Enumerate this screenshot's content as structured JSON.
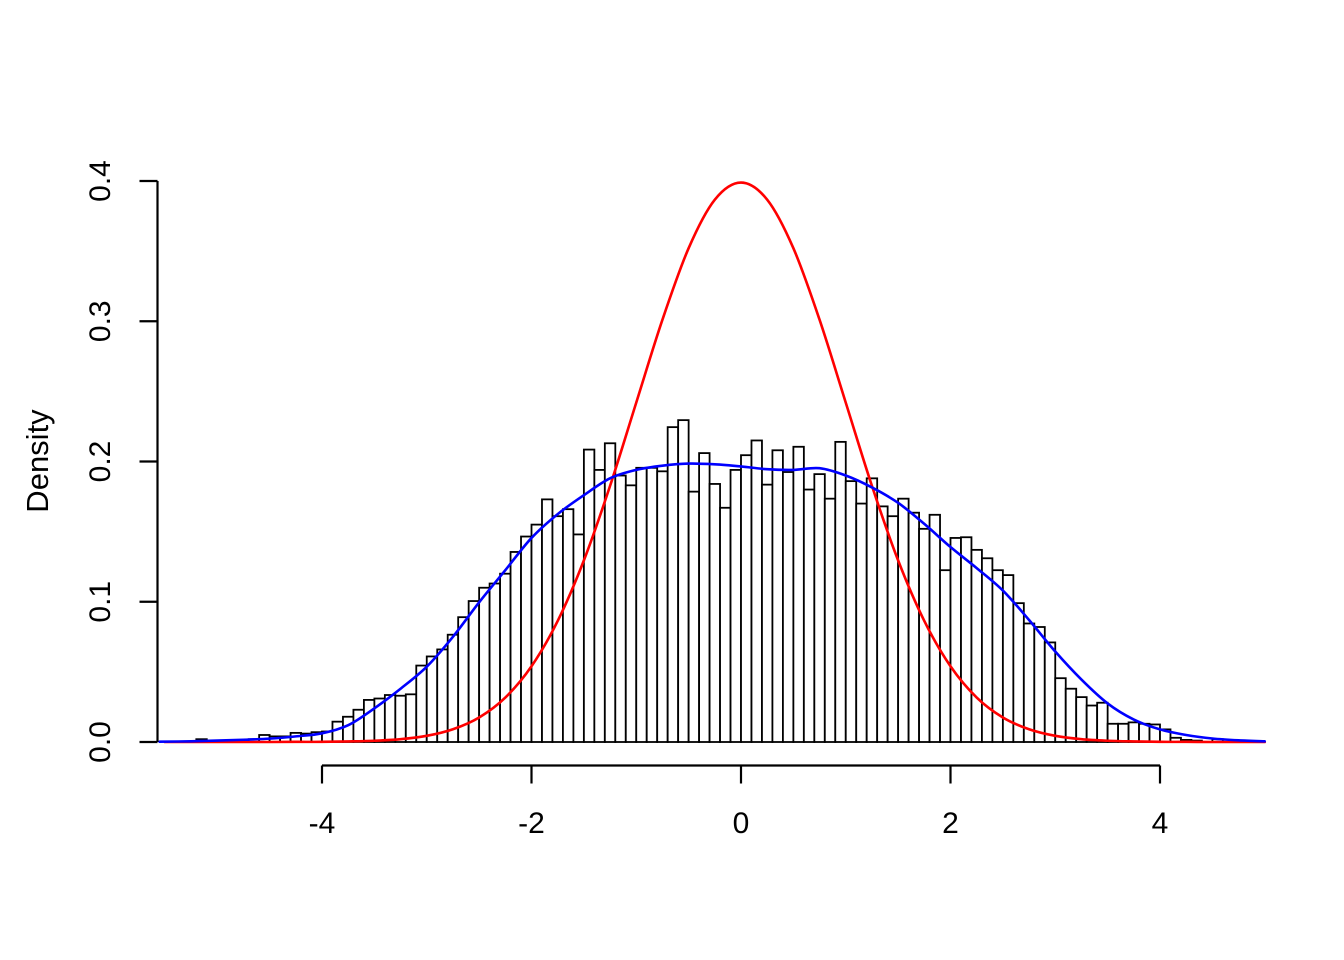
{
  "figure": {
    "background": "#FFFFFF"
  },
  "chart_data": {
    "type": "bar",
    "subtype": "histogram-with-density-curves",
    "title": "",
    "xlabel": "",
    "ylabel": "Density",
    "x_ticks": [
      -4,
      -2,
      0,
      2,
      4
    ],
    "x_tick_labels": [
      "-4",
      "-2",
      "0",
      "2",
      "4"
    ],
    "y_ticks": [
      0.0,
      0.1,
      0.2,
      0.3,
      0.4
    ],
    "y_tick_labels": [
      "0.0",
      "0.1",
      "0.2",
      "0.3",
      "0.4"
    ],
    "xlim": [
      -5.6,
      5.05
    ],
    "ylim": [
      0,
      0.4
    ],
    "grid": "off",
    "legend": "none",
    "axis_color": "#000000",
    "histogram": {
      "bin_start": -5.2,
      "bin_width": 0.1,
      "bar_fill": "#FFFFFF",
      "bar_stroke": "#000000",
      "densities": [
        0.002,
        0,
        0,
        0,
        0,
        0.002,
        0.005,
        0.004,
        0.004,
        0.0065,
        0.006,
        0.007,
        0.0075,
        0.0145,
        0.018,
        0.023,
        0.03,
        0.031,
        0.0335,
        0.033,
        0.034,
        0.0545,
        0.061,
        0.066,
        0.0765,
        0.089,
        0.1005,
        0.11,
        0.113,
        0.12,
        0.1355,
        0.1465,
        0.155,
        0.173,
        0.161,
        0.166,
        0.148,
        0.2085,
        0.194,
        0.213,
        0.19,
        0.183,
        0.1955,
        0.1955,
        0.193,
        0.2245,
        0.2295,
        0.1785,
        0.206,
        0.184,
        0.167,
        0.194,
        0.2045,
        0.215,
        0.1835,
        0.208,
        0.1925,
        0.2105,
        0.18,
        0.191,
        0.1735,
        0.214,
        0.186,
        0.17,
        0.188,
        0.168,
        0.161,
        0.1735,
        0.1635,
        0.152,
        0.162,
        0.1225,
        0.1455,
        0.146,
        0.137,
        0.131,
        0.1225,
        0.119,
        0.099,
        0.0845,
        0.082,
        0.071,
        0.0455,
        0.038,
        0.032,
        0.026,
        0.028,
        0.013,
        0.013,
        0.014,
        0.013,
        0.0125,
        0.009,
        0.003,
        0.0015,
        0.001,
        0,
        0.002
      ]
    },
    "curves": [
      {
        "name": "normal-density",
        "color": "#FF0000",
        "points": [
          [
            -5.5,
            0
          ],
          [
            -5.25,
            0
          ],
          [
            -5.0,
            0
          ],
          [
            -4.75,
            0
          ],
          [
            -4.5,
            0
          ],
          [
            -4.25,
            0.0001
          ],
          [
            -4.0,
            0.0001
          ],
          [
            -3.75,
            0.0004
          ],
          [
            -3.5,
            0.0009
          ],
          [
            -3.25,
            0.002
          ],
          [
            -3.0,
            0.0044
          ],
          [
            -2.75,
            0.0091
          ],
          [
            -2.5,
            0.0175
          ],
          [
            -2.25,
            0.0317
          ],
          [
            -2.0,
            0.054
          ],
          [
            -1.75,
            0.0863
          ],
          [
            -1.5,
            0.1295
          ],
          [
            -1.25,
            0.1826
          ],
          [
            -1.0,
            0.242
          ],
          [
            -0.75,
            0.3011
          ],
          [
            -0.5,
            0.3521
          ],
          [
            -0.25,
            0.3867
          ],
          [
            0.0,
            0.3989
          ],
          [
            0.25,
            0.3867
          ],
          [
            0.5,
            0.3521
          ],
          [
            0.75,
            0.3011
          ],
          [
            1.0,
            0.242
          ],
          [
            1.25,
            0.1826
          ],
          [
            1.5,
            0.1295
          ],
          [
            1.75,
            0.0863
          ],
          [
            2.0,
            0.054
          ],
          [
            2.25,
            0.0317
          ],
          [
            2.5,
            0.0175
          ],
          [
            2.75,
            0.0091
          ],
          [
            3.0,
            0.0044
          ],
          [
            3.25,
            0.002
          ],
          [
            3.5,
            0.0009
          ],
          [
            3.75,
            0.0004
          ],
          [
            4.0,
            0.0001
          ],
          [
            4.25,
            0.0001
          ],
          [
            4.5,
            0
          ],
          [
            4.75,
            0
          ],
          [
            5.0,
            0
          ]
        ]
      },
      {
        "name": "kernel-density-estimate",
        "color": "#0000FF",
        "points": [
          [
            -5.55,
            0.0002
          ],
          [
            -5.25,
            0.0005
          ],
          [
            -5.0,
            0.001
          ],
          [
            -4.75,
            0.0016
          ],
          [
            -4.5,
            0.0024
          ],
          [
            -4.25,
            0.004
          ],
          [
            -4.0,
            0.0062
          ],
          [
            -3.75,
            0.012
          ],
          [
            -3.5,
            0.024
          ],
          [
            -3.25,
            0.038
          ],
          [
            -3.0,
            0.0537
          ],
          [
            -2.75,
            0.075
          ],
          [
            -2.5,
            0.0996
          ],
          [
            -2.25,
            0.1225
          ],
          [
            -2.0,
            0.1455
          ],
          [
            -1.75,
            0.1625
          ],
          [
            -1.5,
            0.176
          ],
          [
            -1.25,
            0.188
          ],
          [
            -1.0,
            0.194
          ],
          [
            -0.75,
            0.197
          ],
          [
            -0.5,
            0.1985
          ],
          [
            -0.25,
            0.198
          ],
          [
            0.0,
            0.1965
          ],
          [
            0.25,
            0.1945
          ],
          [
            0.5,
            0.194
          ],
          [
            0.75,
            0.1952
          ],
          [
            1.0,
            0.19
          ],
          [
            1.25,
            0.1815
          ],
          [
            1.5,
            0.1705
          ],
          [
            1.75,
            0.1555
          ],
          [
            2.0,
            0.139
          ],
          [
            2.25,
            0.124
          ],
          [
            2.5,
            0.108
          ],
          [
            2.75,
            0.087
          ],
          [
            3.0,
            0.0645
          ],
          [
            3.25,
            0.0445
          ],
          [
            3.5,
            0.0275
          ],
          [
            3.75,
            0.016
          ],
          [
            4.0,
            0.009
          ],
          [
            4.25,
            0.005
          ],
          [
            4.5,
            0.0025
          ],
          [
            4.75,
            0.0012
          ],
          [
            5.0,
            0.0005
          ]
        ]
      }
    ]
  }
}
